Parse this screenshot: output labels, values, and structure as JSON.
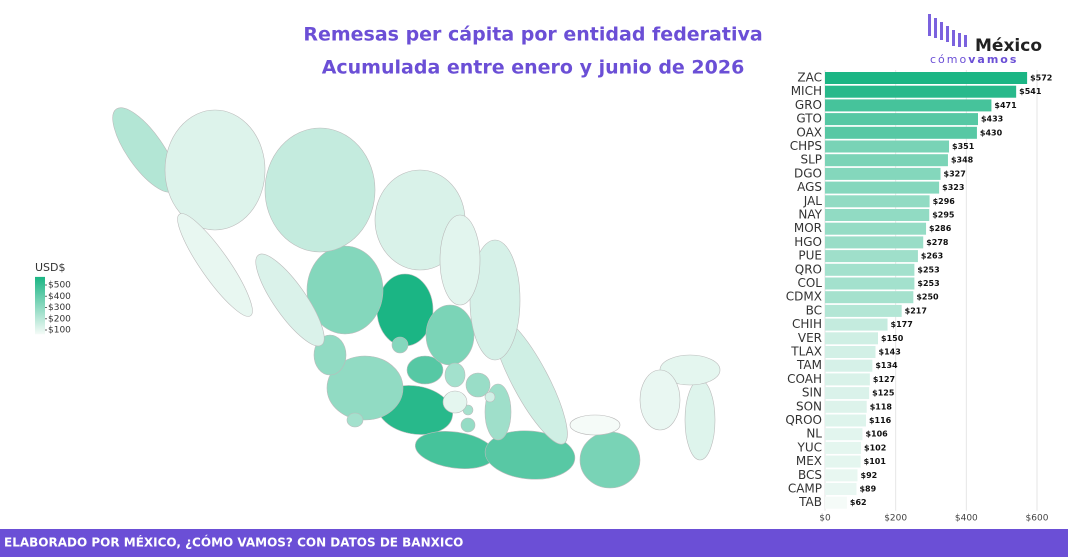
{
  "chart_data": {
    "type": "bar",
    "orientation": "horizontal",
    "title": "Remesas per cápita por entidad federativa",
    "subtitle": "Acumulada entre enero y junio de 2026",
    "categories": [
      "ZAC",
      "MICH",
      "GRO",
      "GTO",
      "OAX",
      "CHPS",
      "SLP",
      "DGO",
      "AGS",
      "JAL",
      "NAY",
      "MOR",
      "HGO",
      "PUE",
      "QRO",
      "COL",
      "CDMX",
      "BC",
      "CHIH",
      "VER",
      "TLAX",
      "TAM",
      "COAH",
      "SIN",
      "SON",
      "QROO",
      "NL",
      "YUC",
      "MEX",
      "BCS",
      "CAMP",
      "TAB"
    ],
    "values": [
      572,
      541,
      471,
      433,
      430,
      351,
      348,
      327,
      323,
      296,
      295,
      286,
      278,
      263,
      253,
      253,
      250,
      217,
      177,
      150,
      143,
      134,
      127,
      125,
      118,
      116,
      106,
      102,
      101,
      92,
      89,
      62
    ],
    "value_labels": [
      "$572",
      "$541",
      "$471",
      "$433",
      "$430",
      "$351",
      "$348",
      "$327",
      "$323",
      "$296",
      "$295",
      "$286",
      "$278",
      "$263",
      "$253",
      "$253",
      "$250",
      "$217",
      "$177",
      "$150",
      "$143",
      "$134",
      "$127",
      "$125",
      "$118",
      "$116",
      "$106",
      "$102",
      "$101",
      "$92",
      "$89",
      "$62"
    ],
    "xlim": [
      0,
      640
    ],
    "xticks": [
      {
        "value": 0,
        "label": "$0"
      },
      {
        "value": 200,
        "label": "$200"
      },
      {
        "value": 400,
        "label": "$400"
      },
      {
        "value": 600,
        "label": "$600"
      }
    ],
    "grid": true,
    "color_scale": {
      "low": "#f5fbf8",
      "high": "#1bb584"
    },
    "legend": {
      "title": "USD$",
      "ticks": [
        {
          "value": 500,
          "label": "$500"
        },
        {
          "value": 400,
          "label": "$400"
        },
        {
          "value": 300,
          "label": "$300"
        },
        {
          "value": 200,
          "label": "$200"
        },
        {
          "value": 100,
          "label": "$100"
        }
      ]
    },
    "footer": "ELABORADO POR MÉXICO, ¿CÓMO VAMOS? CON DATOS DE BANXICO",
    "logo": {
      "name": "México",
      "tag_a": "cómo",
      "tag_b": "vamos"
    }
  }
}
